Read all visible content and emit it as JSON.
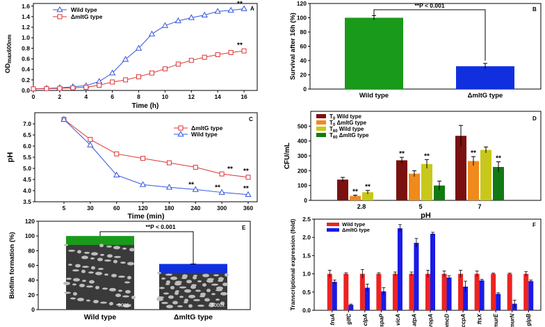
{
  "chart_data": [
    {
      "panel": "A",
      "type": "line",
      "xlabel": "Time (h)",
      "ylabel": "OD",
      "ylabel_sub": "max600nm",
      "xlim": [
        0,
        17
      ],
      "ylim": [
        0,
        1.65
      ],
      "xticks": [
        "0",
        "2",
        "4",
        "6",
        "8",
        "10",
        "12",
        "14",
        "16"
      ],
      "yticks": [
        "0.0",
        "0.2",
        "0.4",
        "0.6",
        "0.8",
        "1.0",
        "1.2",
        "1.4",
        "1.6"
      ],
      "legend_position": "top-left",
      "sig_marks": [
        "**",
        "**"
      ],
      "series": [
        {
          "name": "Wild type",
          "color": "#3355dd",
          "marker": "triangle",
          "x": [
            0,
            1,
            2,
            3,
            4,
            5,
            6,
            7,
            8,
            9,
            10,
            11,
            12,
            13,
            14,
            15,
            16
          ],
          "y": [
            0.03,
            0.04,
            0.05,
            0.07,
            0.09,
            0.17,
            0.33,
            0.59,
            0.8,
            1.07,
            1.23,
            1.32,
            1.38,
            1.43,
            1.5,
            1.52,
            1.55
          ]
        },
        {
          "name": "ΔmltG type",
          "color": "#dd3333",
          "marker": "square",
          "x": [
            0,
            1,
            2,
            3,
            4,
            5,
            6,
            7,
            8,
            9,
            10,
            11,
            12,
            13,
            14,
            15,
            16
          ],
          "y": [
            0.03,
            0.035,
            0.04,
            0.05,
            0.06,
            0.1,
            0.16,
            0.2,
            0.26,
            0.33,
            0.41,
            0.5,
            0.57,
            0.63,
            0.68,
            0.72,
            0.75
          ]
        }
      ]
    },
    {
      "panel": "B",
      "type": "bar",
      "ylabel": "Survival after 16h (%)",
      "ylim": [
        0,
        120
      ],
      "yticks": [
        "0",
        "20",
        "40",
        "60",
        "80",
        "100",
        "120"
      ],
      "categories": [
        "Wild type",
        "ΔmltG type"
      ],
      "values": [
        100,
        32
      ],
      "errors": [
        3,
        4
      ],
      "colors": [
        "#1a9a1a",
        "#1030e0"
      ],
      "annotation": "**P < 0.001"
    },
    {
      "panel": "C",
      "type": "line",
      "xlabel": "Time (min)",
      "ylabel": "pH",
      "categories": [
        "5",
        "30",
        "60",
        "120",
        "180",
        "240",
        "300",
        "360"
      ],
      "ylim": [
        3.5,
        7.5
      ],
      "yticks": [
        "3.5",
        "4.0",
        "4.5",
        "5.0",
        "5.5",
        "6.0",
        "6.5",
        "7.0"
      ],
      "legend_position": "top-right",
      "sig_marks": [
        "**",
        "**",
        "**",
        "**",
        "**",
        "**"
      ],
      "series": [
        {
          "name": "ΔmltG type",
          "color": "#dd3333",
          "marker": "square",
          "values": [
            7.2,
            6.3,
            5.65,
            5.45,
            5.25,
            5.05,
            4.75,
            4.6
          ]
        },
        {
          "name": "Wild type",
          "color": "#3355dd",
          "marker": "triangle",
          "values": [
            7.2,
            6.05,
            4.7,
            4.27,
            4.15,
            4.05,
            3.92,
            3.82
          ]
        }
      ]
    },
    {
      "panel": "D",
      "type": "bar",
      "xlabel": "pH",
      "ylabel": "CFU/mL",
      "categories": [
        "2.8",
        "5",
        "7"
      ],
      "ylim": [
        0,
        600
      ],
      "yticks": [
        "0",
        "100",
        "200",
        "300",
        "400",
        "500"
      ],
      "legend_position": "top-left",
      "series": [
        {
          "name": "T0 Wild type",
          "label_main": "T",
          "label_sub": "0",
          "label_rest": " Wild type",
          "color": "#7a1010",
          "values": [
            140,
            270,
            435
          ],
          "errors": [
            15,
            20,
            70
          ]
        },
        {
          "name": "T0 ΔmltG type",
          "label_main": "T",
          "label_sub": "0",
          "label_rest": " ΔmltG type",
          "color": "#f08a1c",
          "values": [
            30,
            180,
            265
          ],
          "errors": [
            5,
            20,
            30
          ]
        },
        {
          "name": "T60 Wild type",
          "label_main": "T",
          "label_sub": "60",
          "label_rest": " Wild type",
          "color": "#c8c81a",
          "values": [
            55,
            245,
            340
          ],
          "errors": [
            12,
            30,
            20
          ]
        },
        {
          "name": "T60 ΔmltG type",
          "label_main": "T",
          "label_sub": "60",
          "label_rest": " ΔmltG type",
          "color": "#127a12",
          "values": [
            0,
            100,
            225
          ],
          "errors": [
            0,
            30,
            35
          ]
        }
      ],
      "sig_marks": [
        "**",
        "**",
        "**",
        "**",
        "**",
        "**"
      ]
    },
    {
      "panel": "E",
      "type": "bar",
      "ylabel": "Biofilm formation (%)",
      "ylim": [
        0,
        120
      ],
      "yticks": [
        "0",
        "20",
        "40",
        "60",
        "80",
        "100",
        "120"
      ],
      "categories": [
        "Wild type",
        "ΔmltG type"
      ],
      "values": [
        100,
        62
      ],
      "colors": [
        "#1a9a1a",
        "#1030e0"
      ],
      "annotation": "**P < 0.001",
      "micrograph_labels": [
        "5000x",
        "5000x"
      ]
    },
    {
      "panel": "F",
      "type": "bar",
      "ylabel": "Transcriptional expression (fold)",
      "ylim": [
        0,
        2.5
      ],
      "yticks": [
        "0.0",
        "0.5",
        "1.0",
        "1.5",
        "2.0",
        "2.5"
      ],
      "categories": [
        "fruA",
        "glfC",
        "clpA",
        "spaP",
        "vicA",
        "atpA",
        "ropA",
        "comcD",
        "ccpA",
        "ftsX",
        "murE",
        "murN",
        "glpB"
      ],
      "series": [
        {
          "name": "Wild type",
          "color": "#ee2222",
          "values": [
            1,
            1,
            1,
            1,
            1,
            1,
            1,
            1,
            1,
            1,
            1,
            1,
            1
          ],
          "errors": [
            0.1,
            0.03,
            0.12,
            0.03,
            0.05,
            0.05,
            0.1,
            0.08,
            0.1,
            0.08,
            0.02,
            0.02,
            0.06
          ]
        },
        {
          "name": "ΔmltG type",
          "color": "#1a1ae8",
          "values": [
            0.78,
            0.15,
            0.62,
            0.52,
            2.25,
            1.85,
            2.1,
            0.9,
            0.65,
            0.82,
            0.45,
            0.18,
            0.8
          ],
          "errors": [
            0.05,
            0.02,
            0.1,
            0.1,
            0.1,
            0.12,
            0.04,
            0.05,
            0.15,
            0.03,
            0.03,
            0.1,
            0.03
          ]
        }
      ]
    }
  ]
}
